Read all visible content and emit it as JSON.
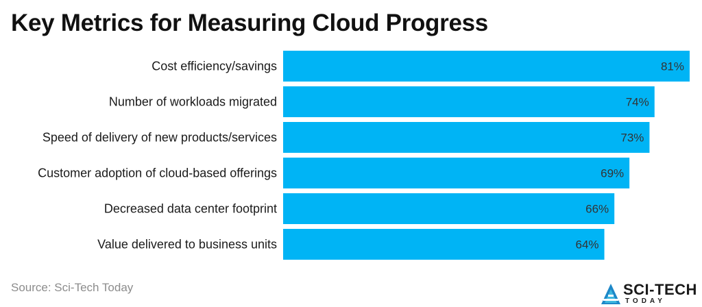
{
  "chart_data": {
    "type": "bar",
    "orientation": "horizontal",
    "title": "Key Metrics for Measuring Cloud Progress",
    "categories": [
      "Cost efficiency/savings",
      "Number of workloads migrated",
      "Speed of delivery of new products/services",
      "Customer adoption of cloud-based offerings",
      "Decreased data center footprint",
      "Value delivered to business units"
    ],
    "values": [
      81,
      74,
      73,
      69,
      66,
      64
    ],
    "data_labels": [
      "81%",
      "74%",
      "73%",
      "69%",
      "66%",
      "64%"
    ],
    "xlim": [
      0,
      81
    ],
    "grid": false,
    "bar_color": "#00b4f5"
  },
  "source": "Source: Sci-Tech Today",
  "logo": {
    "name": "SCI-TECH",
    "sub": "TODAY",
    "icon": "sci-tech-logo-icon"
  }
}
